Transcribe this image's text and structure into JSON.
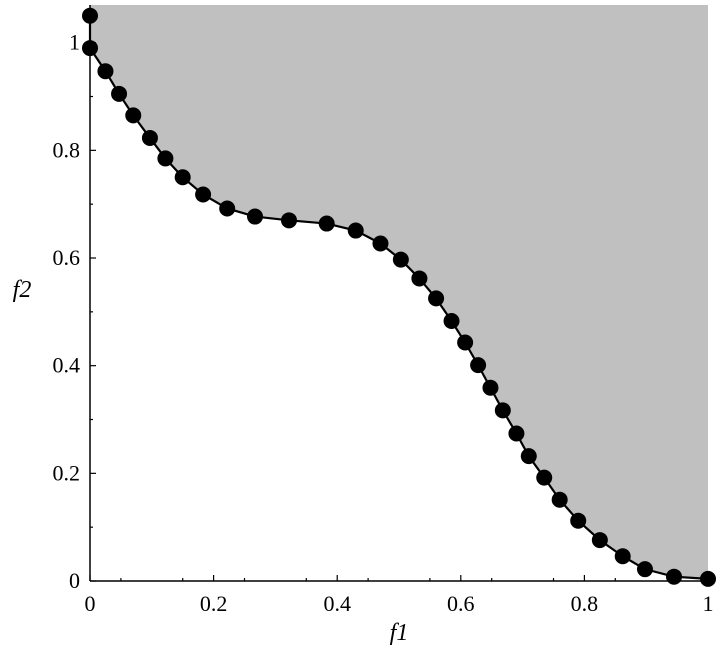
{
  "chart_data": {
    "type": "scatter",
    "title": "",
    "xlabel": "f1",
    "ylabel": "f2",
    "xlim": [
      0,
      1
    ],
    "ylim": [
      0,
      1.07
    ],
    "xticks": [
      "0",
      "0.2",
      "0.4",
      "0.6",
      "0.8",
      "1"
    ],
    "yticks": [
      "0",
      "0.2",
      "0.4",
      "0.6",
      "0.8",
      "1"
    ],
    "grid": false,
    "legend": "none",
    "colors": {
      "shaded_region": "#c0c0c0",
      "points": "#000000",
      "line": "#000000"
    },
    "series": [
      {
        "x": [
          0.0,
          0.0,
          0.025,
          0.047,
          0.07,
          0.097,
          0.122,
          0.15,
          0.183,
          0.222,
          0.267,
          0.322,
          0.383,
          0.43,
          0.47,
          0.503,
          0.533,
          0.56,
          0.585,
          0.607,
          0.628,
          0.648,
          0.668,
          0.69,
          0.71,
          0.735,
          0.76,
          0.79,
          0.825,
          0.862,
          0.898,
          0.945,
          1.0
        ],
        "y": [
          1.05,
          0.99,
          0.947,
          0.905,
          0.865,
          0.823,
          0.785,
          0.75,
          0.718,
          0.692,
          0.677,
          0.67,
          0.664,
          0.651,
          0.627,
          0.597,
          0.562,
          0.525,
          0.483,
          0.443,
          0.401,
          0.359,
          0.317,
          0.274,
          0.232,
          0.192,
          0.151,
          0.112,
          0.076,
          0.046,
          0.022,
          0.008,
          0.004
        ]
      }
    ]
  }
}
